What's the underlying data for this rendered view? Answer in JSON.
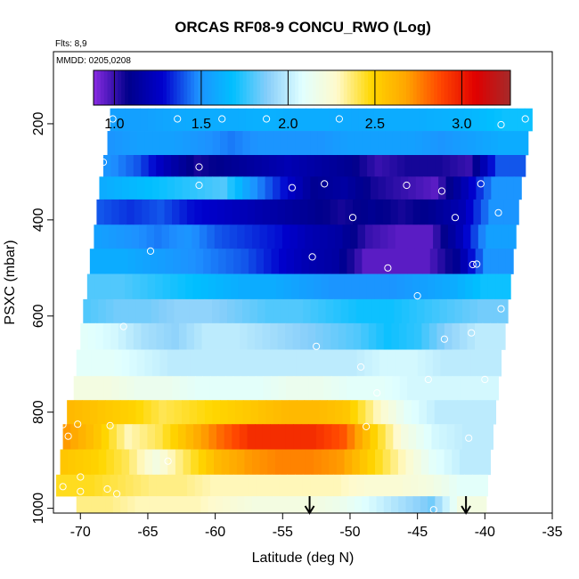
{
  "chart_data": {
    "type": "heatmap",
    "title": "ORCAS RF08-9 CONCU_RWO (Log)",
    "flights_note": "Flts: 8,9",
    "date_note": "MMDD: 0205,0208",
    "xlabel": "Latitude (deg N)",
    "ylabel": "PSXC (mbar)",
    "xlim": [
      -72,
      -35
    ],
    "ylim": [
      1010,
      50
    ],
    "y_reversed": true,
    "x_ticks": [
      -70,
      -65,
      -60,
      -55,
      -50,
      -45,
      -40,
      -35
    ],
    "y_ticks": [
      200,
      400,
      600,
      800,
      1000
    ],
    "colorbar": {
      "range": [
        0.88,
        3.28
      ],
      "ticks": [
        1.0,
        1.5,
        2.0,
        2.5,
        3.0
      ],
      "colors": [
        "#8a2be2",
        "#00008b",
        "#0000cd",
        "#1e90ff",
        "#00bfff",
        "#87cefa",
        "#e0ffff",
        "#fffacd",
        "#ffd700",
        "#ffa500",
        "#ff4500",
        "#e00000",
        "#a52a2a"
      ]
    },
    "layers": [
      {
        "p": 190,
        "x0": -67.8,
        "x1": -36.5,
        "values": [
          1.55,
          1.55,
          1.58,
          1.6,
          1.6,
          1.62,
          1.6,
          1.6,
          1.58,
          1.6,
          1.6,
          1.62,
          1.65,
          1.7
        ]
      },
      {
        "p": 240,
        "x0": -68.0,
        "x1": -36.8,
        "values": [
          1.5,
          1.55,
          1.55,
          1.5,
          1.45,
          1.5,
          1.5,
          1.5,
          1.55,
          1.55,
          1.55,
          1.5,
          1.55,
          1.6
        ]
      },
      {
        "p": 290,
        "x0": -68.3,
        "x1": -37.0,
        "values": [
          1.5,
          1.4,
          1.2,
          1.05,
          1.1,
          1.15,
          1.2,
          1.15,
          1.1,
          1.0,
          1.05,
          1.05,
          1.0,
          1.4
        ]
      },
      {
        "p": 330,
        "x0": -68.6,
        "x1": -37.3,
        "values": [
          1.6,
          1.65,
          1.7,
          1.75,
          1.8,
          1.5,
          1.3,
          1.1,
          1.15,
          1.05,
          1.0,
          0.95,
          1.2,
          1.5
        ]
      },
      {
        "p": 385,
        "x0": -68.8,
        "x1": -37.5,
        "values": [
          1.4,
          1.35,
          1.4,
          1.3,
          1.25,
          1.2,
          1.15,
          1.1,
          1.05,
          1.1,
          1.05,
          1.1,
          1.2,
          1.5
        ]
      },
      {
        "p": 435,
        "x0": -69.0,
        "x1": -37.7,
        "values": [
          1.55,
          1.5,
          1.45,
          1.5,
          1.4,
          1.35,
          1.3,
          1.2,
          1.15,
          1.0,
          0.95,
          0.95,
          1.2,
          1.55
        ]
      },
      {
        "p": 485,
        "x0": -69.3,
        "x1": -37.9,
        "values": [
          1.6,
          1.6,
          1.55,
          1.5,
          1.45,
          1.4,
          1.3,
          1.2,
          1.15,
          0.95,
          0.95,
          0.95,
          1.1,
          1.5
        ]
      },
      {
        "p": 540,
        "x0": -69.5,
        "x1": -38.1,
        "values": [
          1.8,
          1.8,
          1.75,
          1.7,
          1.65,
          1.6,
          1.6,
          1.55,
          1.5,
          1.5,
          1.5,
          1.55,
          1.6,
          1.7
        ]
      },
      {
        "p": 590,
        "x0": -69.8,
        "x1": -38.3,
        "values": [
          1.8,
          1.85,
          1.85,
          1.9,
          1.9,
          1.85,
          1.8,
          1.8,
          1.75,
          1.7,
          1.7,
          1.75,
          1.8,
          1.85
        ]
      },
      {
        "p": 640,
        "x0": -70.0,
        "x1": -38.5,
        "values": [
          2.1,
          2.05,
          1.95,
          1.9,
          2.0,
          2.0,
          1.95,
          1.9,
          1.85,
          1.8,
          1.7,
          1.75,
          1.9,
          2.0
        ]
      },
      {
        "p": 700,
        "x0": -70.3,
        "x1": -38.8,
        "values": [
          2.1,
          2.1,
          2.05,
          2.0,
          2.0,
          2.0,
          2.0,
          2.0,
          2.0,
          2.0,
          2.05,
          2.05,
          2.0,
          2.0
        ]
      },
      {
        "p": 750,
        "x0": -70.5,
        "x1": -39.0,
        "values": [
          2.2,
          2.2,
          2.15,
          2.15,
          2.1,
          2.1,
          2.1,
          2.15,
          2.15,
          2.1,
          2.1,
          2.05,
          2.05,
          2.05
        ]
      },
      {
        "p": 800,
        "x0": -71.0,
        "x1": -39.2,
        "values": [
          2.6,
          2.55,
          2.5,
          2.4,
          2.45,
          2.5,
          2.55,
          2.6,
          2.6,
          2.55,
          2.3,
          2.1,
          2.0,
          2.0
        ]
      },
      {
        "p": 850,
        "x0": -71.3,
        "x1": -39.4,
        "values": [
          2.7,
          2.55,
          2.3,
          2.4,
          2.6,
          2.8,
          2.95,
          2.95,
          2.95,
          2.85,
          2.5,
          2.2,
          2.05,
          2.0
        ]
      },
      {
        "p": 905,
        "x0": -71.5,
        "x1": -39.6,
        "values": [
          2.55,
          2.5,
          2.4,
          2.2,
          2.4,
          2.6,
          2.7,
          2.75,
          2.75,
          2.7,
          2.5,
          2.3,
          2.1,
          2.0
        ]
      },
      {
        "p": 955,
        "x0": -71.8,
        "x1": -39.8,
        "values": [
          2.45,
          2.45,
          2.4,
          2.35,
          2.35,
          2.3,
          2.3,
          2.3,
          2.3,
          2.3,
          2.25,
          2.25,
          2.2,
          2.1
        ]
      },
      {
        "p": 995,
        "x0": -70.3,
        "x1": -39.9,
        "values": [
          2.35,
          2.35,
          2.3,
          2.3,
          2.3,
          2.25,
          2.2,
          2.2,
          2.2,
          2.15,
          2.05,
          1.95,
          1.85,
          2.2
        ]
      }
    ],
    "points": [
      [
        -67.6,
        190
      ],
      [
        -62.8,
        190
      ],
      [
        -59.5,
        190
      ],
      [
        -56.2,
        190
      ],
      [
        -50.8,
        190
      ],
      [
        -38.8,
        202
      ],
      [
        -37.0,
        190
      ],
      [
        -36.0,
        190
      ],
      [
        -35.3,
        190
      ],
      [
        -68.3,
        280
      ],
      [
        -61.2,
        290
      ],
      [
        -61.2,
        328
      ],
      [
        -54.3,
        333
      ],
      [
        -51.9,
        325
      ],
      [
        -45.8,
        328
      ],
      [
        -43.2,
        340
      ],
      [
        -40.3,
        325
      ],
      [
        -69.2,
        375
      ],
      [
        -49.8,
        395
      ],
      [
        -42.2,
        395
      ],
      [
        -39.0,
        385
      ],
      [
        -69.8,
        467
      ],
      [
        -64.8,
        465
      ],
      [
        -52.8,
        477
      ],
      [
        -47.2,
        500
      ],
      [
        -40.9,
        493
      ],
      [
        -40.6,
        492
      ],
      [
        -45.0,
        558
      ],
      [
        -70.2,
        575
      ],
      [
        -38.8,
        585
      ],
      [
        -66.8,
        622
      ],
      [
        -43.0,
        648
      ],
      [
        -41.0,
        635
      ],
      [
        -52.5,
        663
      ],
      [
        -49.2,
        706
      ],
      [
        -44.2,
        732
      ],
      [
        -40.0,
        732
      ],
      [
        -48.0,
        760
      ],
      [
        -70.2,
        825
      ],
      [
        -71.3,
        826
      ],
      [
        -67.8,
        828
      ],
      [
        -48.8,
        830
      ],
      [
        -70.9,
        850
      ],
      [
        -41.2,
        854
      ],
      [
        -63.5,
        902
      ],
      [
        -70.0,
        935
      ],
      [
        -71.3,
        955
      ],
      [
        -70.0,
        965
      ],
      [
        -68.0,
        960
      ],
      [
        -67.3,
        970
      ],
      [
        -43.8,
        1003
      ]
    ],
    "arrows": [
      -53.0,
      -41.4
    ]
  }
}
